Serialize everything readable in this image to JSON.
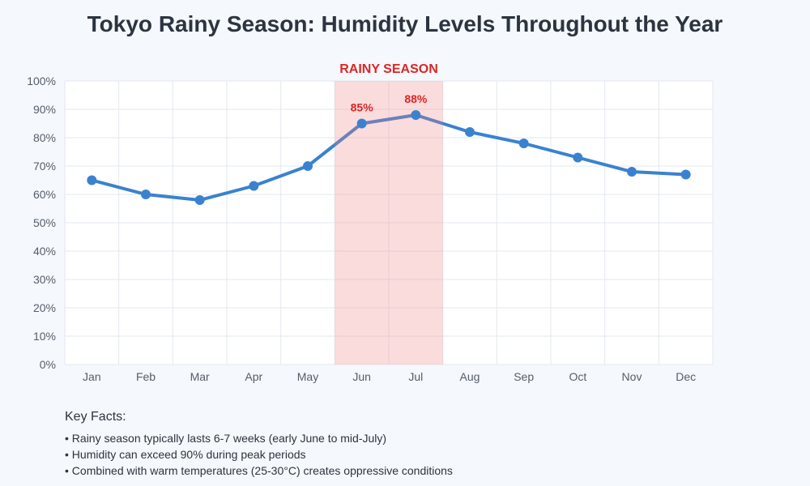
{
  "title": "Tokyo Rainy Season: Humidity Levels Throughout the Year",
  "chart_data": {
    "type": "line",
    "categories": [
      "Jan",
      "Feb",
      "Mar",
      "Apr",
      "May",
      "Jun",
      "Jul",
      "Aug",
      "Sep",
      "Oct",
      "Nov",
      "Dec"
    ],
    "values": [
      65,
      60,
      58,
      63,
      70,
      85,
      88,
      82,
      78,
      73,
      68,
      67
    ],
    "ylim": [
      0,
      100
    ],
    "yticks": [
      "0%",
      "10%",
      "20%",
      "30%",
      "40%",
      "50%",
      "60%",
      "70%",
      "80%",
      "90%",
      "100%"
    ],
    "grid": true,
    "highlight": {
      "label": "RAINY SEASON",
      "from": "Jun",
      "to": "Jul",
      "color": "#f08080"
    },
    "data_labels": [
      {
        "category": "Jun",
        "text": "85%"
      },
      {
        "category": "Jul",
        "text": "88%"
      }
    ],
    "line_color": "#3a82d0",
    "highlight_text_color": "#dc2626"
  },
  "key_facts": {
    "title": "Key Facts:",
    "items": [
      "• Rainy season typically lasts 6-7 weeks (early June to mid-July)",
      "• Humidity can exceed 90% during peak periods",
      "• Combined with warm temperatures (25-30°C) creates oppressive conditions"
    ]
  }
}
